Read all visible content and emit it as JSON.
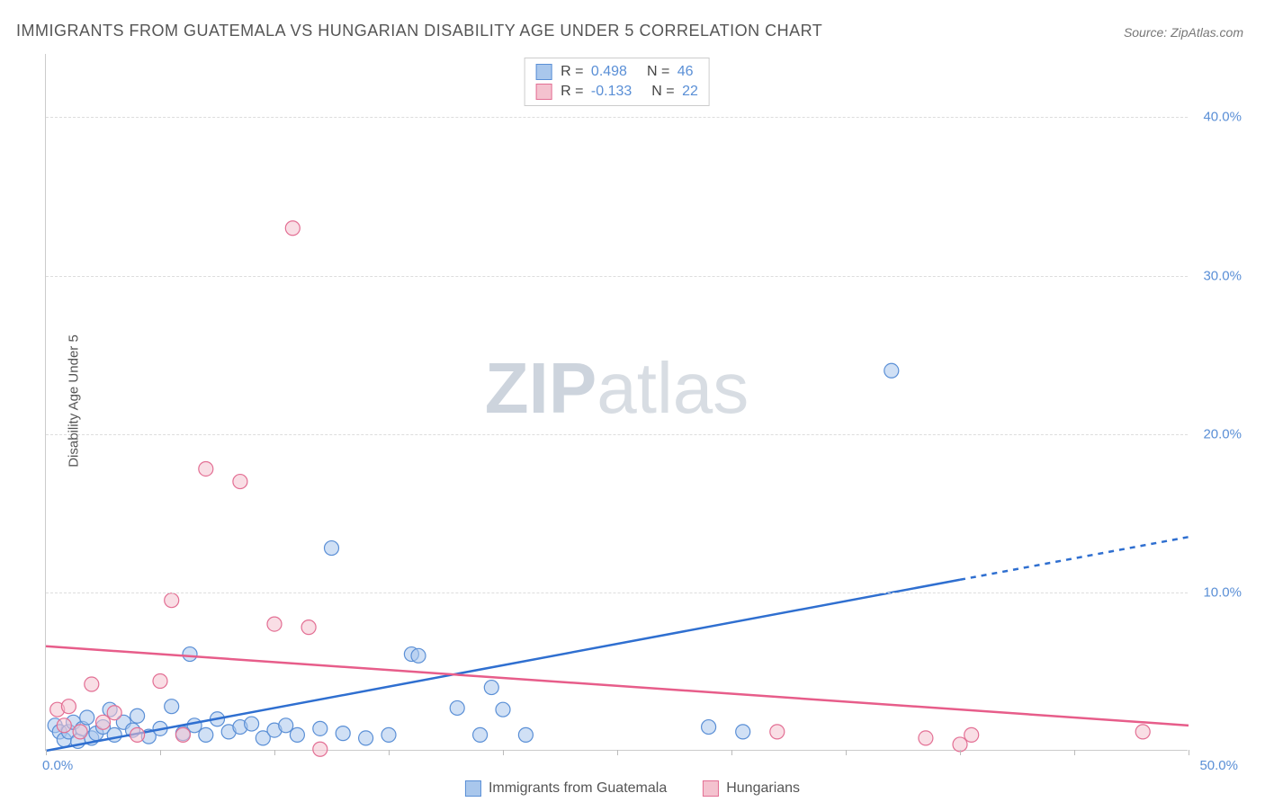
{
  "title": "IMMIGRANTS FROM GUATEMALA VS HUNGARIAN DISABILITY AGE UNDER 5 CORRELATION CHART",
  "source_label": "Source: ZipAtlas.com",
  "y_axis_label": "Disability Age Under 5",
  "watermark": {
    "bold": "ZIP",
    "rest": "atlas"
  },
  "chart": {
    "type": "scatter",
    "background_color": "#ffffff",
    "grid_color": "#dddddd",
    "axis_color": "#cccccc",
    "xlim": [
      0,
      50
    ],
    "ylim": [
      0,
      44
    ],
    "y_ticks": [
      10,
      20,
      30,
      40
    ],
    "y_tick_labels": [
      "10.0%",
      "20.0%",
      "30.0%",
      "40.0%"
    ],
    "x_tick_positions": [
      0,
      5,
      10,
      15,
      20,
      25,
      30,
      35,
      40,
      45,
      50
    ],
    "x_min_label": "0.0%",
    "x_max_label": "50.0%",
    "tick_label_color": "#5a8fd6",
    "marker_radius": 8,
    "marker_opacity": 0.55,
    "series": [
      {
        "key": "guatemala",
        "label": "Immigrants from Guatemala",
        "color_fill": "#a9c7ec",
        "color_stroke": "#5a8fd6",
        "R": "0.498",
        "N": "46",
        "trend": {
          "x1": 0,
          "y1": 0.0,
          "x2": 50,
          "y2": 13.5,
          "dash_after_x": 40,
          "color": "#2f6fd0",
          "width": 2.5
        },
        "points": [
          [
            0.4,
            1.6
          ],
          [
            0.6,
            1.2
          ],
          [
            0.8,
            0.7
          ],
          [
            1.0,
            1.2
          ],
          [
            1.2,
            1.8
          ],
          [
            1.4,
            0.6
          ],
          [
            1.6,
            1.4
          ],
          [
            1.8,
            2.1
          ],
          [
            2.0,
            0.8
          ],
          [
            2.2,
            1.1
          ],
          [
            2.5,
            1.5
          ],
          [
            2.8,
            2.6
          ],
          [
            3.0,
            1.0
          ],
          [
            3.4,
            1.8
          ],
          [
            3.8,
            1.3
          ],
          [
            4.0,
            2.2
          ],
          [
            4.5,
            0.9
          ],
          [
            5.0,
            1.4
          ],
          [
            5.5,
            2.8
          ],
          [
            6.0,
            1.1
          ],
          [
            6.3,
            6.1
          ],
          [
            6.5,
            1.6
          ],
          [
            7.0,
            1.0
          ],
          [
            7.5,
            2.0
          ],
          [
            8.0,
            1.2
          ],
          [
            8.5,
            1.5
          ],
          [
            9.0,
            1.7
          ],
          [
            9.5,
            0.8
          ],
          [
            10.0,
            1.3
          ],
          [
            10.5,
            1.6
          ],
          [
            11.0,
            1.0
          ],
          [
            12.0,
            1.4
          ],
          [
            12.5,
            12.8
          ],
          [
            13.0,
            1.1
          ],
          [
            14.0,
            0.8
          ],
          [
            15.0,
            1.0
          ],
          [
            16.0,
            6.1
          ],
          [
            16.3,
            6.0
          ],
          [
            18.0,
            2.7
          ],
          [
            19.0,
            1.0
          ],
          [
            19.5,
            4.0
          ],
          [
            20.0,
            2.6
          ],
          [
            21.0,
            1.0
          ],
          [
            29.0,
            1.5
          ],
          [
            37.0,
            24.0
          ],
          [
            30.5,
            1.2
          ]
        ]
      },
      {
        "key": "hungarians",
        "label": "Hungarians",
        "color_fill": "#f4c2cf",
        "color_stroke": "#e36f94",
        "R": "-0.133",
        "N": "22",
        "trend": {
          "x1": 0,
          "y1": 6.6,
          "x2": 50,
          "y2": 1.6,
          "color": "#e75d8a",
          "width": 2.5
        },
        "points": [
          [
            0.5,
            2.6
          ],
          [
            0.8,
            1.6
          ],
          [
            1.0,
            2.8
          ],
          [
            1.5,
            1.2
          ],
          [
            2.0,
            4.2
          ],
          [
            2.5,
            1.8
          ],
          [
            3.0,
            2.4
          ],
          [
            4.0,
            1.0
          ],
          [
            5.0,
            4.4
          ],
          [
            5.5,
            9.5
          ],
          [
            6.0,
            1.0
          ],
          [
            7.0,
            17.8
          ],
          [
            8.5,
            17.0
          ],
          [
            10.0,
            8.0
          ],
          [
            10.8,
            33.0
          ],
          [
            11.5,
            7.8
          ],
          [
            12.0,
            0.1
          ],
          [
            32.0,
            1.2
          ],
          [
            38.5,
            0.8
          ],
          [
            40.0,
            0.4
          ],
          [
            40.5,
            1.0
          ],
          [
            48.0,
            1.2
          ]
        ]
      }
    ]
  },
  "legend_top_header": {
    "R_label": "R =",
    "N_label": "N ="
  }
}
